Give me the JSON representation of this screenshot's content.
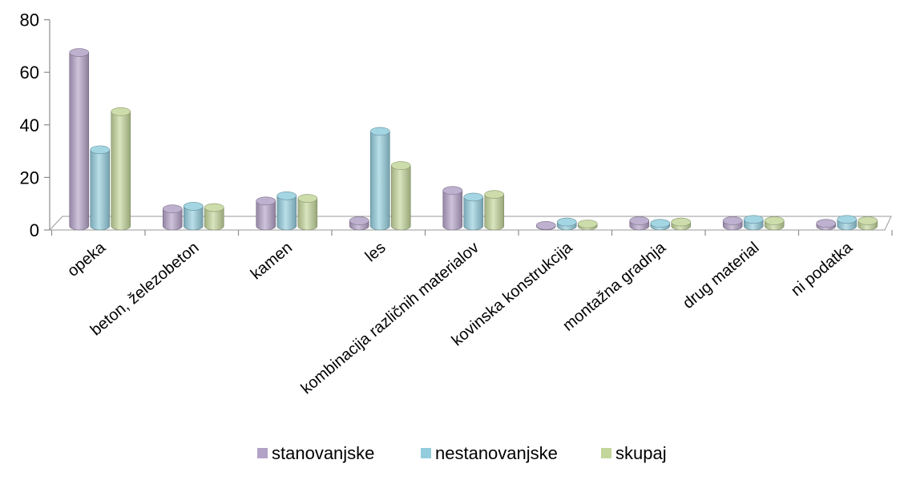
{
  "chart_data": {
    "type": "bar",
    "categories": [
      "opeka",
      "beton, železobeton",
      "kamen",
      "les",
      "kombinacija različnih materialov",
      "kovinska konstrukcija",
      "montažna gradnja",
      "drug material",
      "ni podatka"
    ],
    "series": [
      {
        "name": "stanovanjske",
        "values": [
          66,
          6.5,
          9.5,
          2,
          13.5,
          0.2,
          2,
          2,
          1
        ],
        "color": "#b3a2c7"
      },
      {
        "name": "nestanovanjske",
        "values": [
          29,
          7.5,
          11.5,
          36,
          11,
          1.5,
          1,
          2.5,
          2.5
        ],
        "color": "#93cddd"
      },
      {
        "name": "skupaj",
        "values": [
          43.5,
          7,
          10.5,
          23,
          12,
          0.8,
          1.5,
          2,
          2
        ],
        "color": "#c3d69b"
      }
    ],
    "yticks": [
      0,
      20,
      40,
      60,
      80
    ],
    "ylim": [
      0,
      80
    ],
    "legend_position": "bottom"
  }
}
